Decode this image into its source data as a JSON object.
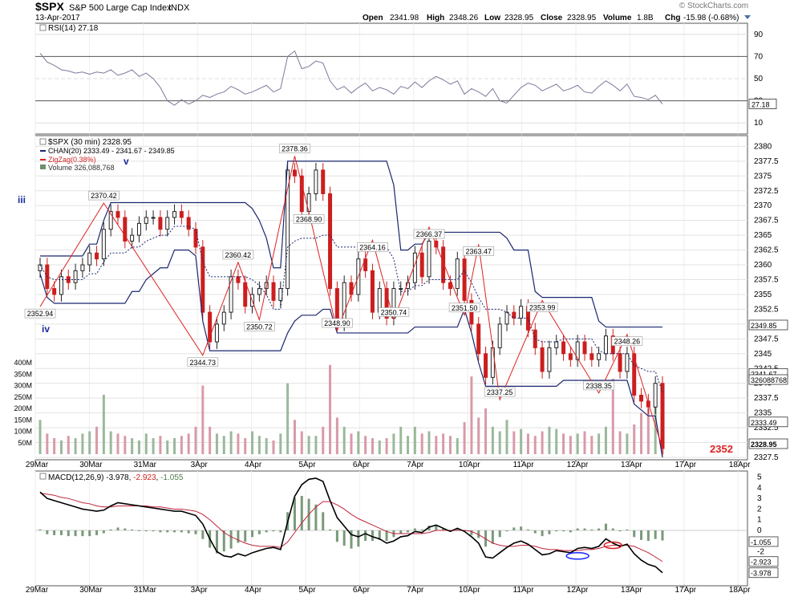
{
  "header": {
    "symbol": "$SPX",
    "name": "S&P 500 Large Cap Index",
    "exchange": "INDX",
    "date": "13-Apr-2017",
    "open_label": "Open",
    "open": "2341.98",
    "high_label": "High",
    "high": "2348.26",
    "low_label": "Low",
    "low": "2328.95",
    "close_label": "Close",
    "close": "2328.95",
    "volume_label": "Volume",
    "volume": "1.8B",
    "chg_label": "Chg",
    "chg": "-15.98 (-0.68%)",
    "copyright": "© StockCharts.com"
  },
  "rsi": {
    "label": "RSI(14) 27.18",
    "ticks": [
      90,
      70,
      50,
      30,
      10
    ],
    "last": "27.18",
    "values": [
      73,
      65,
      62,
      58,
      57,
      55,
      56,
      54,
      56,
      55,
      58,
      53,
      55,
      58,
      52,
      55,
      50,
      42,
      30,
      26,
      31,
      27,
      30,
      35,
      33,
      36,
      38,
      43,
      40,
      36,
      38,
      41,
      44,
      38,
      41,
      70,
      75,
      59,
      61,
      66,
      64,
      48,
      40,
      43,
      37,
      42,
      46,
      39,
      42,
      40,
      36,
      43,
      41,
      47,
      42,
      48,
      52,
      49,
      45,
      48,
      36,
      41,
      38,
      34,
      41,
      30,
      28,
      35,
      42,
      46,
      44,
      39,
      42,
      45,
      39,
      41,
      44,
      38,
      37,
      43,
      48,
      44,
      39,
      45,
      34,
      33,
      31,
      35,
      27
    ]
  },
  "price": {
    "legend_title": "$SPX (30 min) 2328.95",
    "legend_chan": "CHAN(20) 2333.49 - 2341.67 - 2349.85",
    "legend_zigzag": "ZigZag(0.38%)",
    "legend_volume": "Volume 326,088,768",
    "wave_labels": {
      "iii": "iii",
      "iv": "iv",
      "v": "v"
    },
    "target_label": "2352",
    "price_ticks": [
      2380,
      2377.5,
      2375,
      2372.5,
      2370,
      2367.5,
      2365,
      2362.5,
      2360,
      2357.5,
      2355,
      2352.5,
      2350,
      2347.5,
      2345,
      2342.5,
      2340,
      2337.5,
      2335,
      2332.5,
      2330,
      2327.5
    ],
    "volume_ticks": [
      "400M",
      "350M",
      "300M",
      "250M",
      "200M",
      "150M",
      "100M",
      "50M"
    ],
    "last_value_boxes": [
      "2349.85",
      "2341.67",
      "326088768",
      "2333.49",
      "2328.95"
    ]
  },
  "macd": {
    "label_prefix": "MACD(12,26,9)",
    "macd": "-3.978",
    "signal": "-2.923",
    "hist": "-1.055",
    "ticks": [
      5,
      4,
      3,
      2,
      1,
      0,
      -1,
      -2,
      -3,
      -4
    ]
  },
  "x_axis": {
    "labels": [
      "29Mar",
      "30Mar",
      "31Mar",
      "3Apr",
      "4Apr",
      "5Apr",
      "6Apr",
      "7Apr",
      "10Apr",
      "11Apr",
      "12Apr",
      "13Apr",
      "17Apr",
      "18Apr"
    ]
  },
  "colors": {
    "up": "#6e8f6e",
    "down": "#cc1e1e",
    "channel": "#1a2670",
    "zigzag": "#dd2222",
    "grid": "#bbbbbb"
  },
  "chart_data": {
    "type": "candlestick",
    "title": "$SPX S&P 500 Large Cap Index INDX",
    "interval": "30 min",
    "ylim": [
      2327.5,
      2381
    ],
    "zigzag_points": [
      {
        "label": "2352.94",
        "y": 2352.94
      },
      {
        "label": "2370.42",
        "y": 2370.42
      },
      {
        "label": "2344.73",
        "y": 2344.73
      },
      {
        "label": "2360.42",
        "y": 2360.42
      },
      {
        "label": "2350.72",
        "y": 2350.72
      },
      {
        "label": "2378.36",
        "y": 2378.36
      },
      {
        "label": "2368.90",
        "y": 2368.9
      },
      {
        "label": "2348.90",
        "y": 2348.9
      },
      {
        "label": "2364.16",
        "y": 2364.16
      },
      {
        "label": "2350.74",
        "y": 2350.74
      },
      {
        "label": "2366.37",
        "y": 2366.37
      },
      {
        "label": "2351.50",
        "y": 2351.5
      },
      {
        "label": "2363.47",
        "y": 2363.47
      },
      {
        "label": "2337.25",
        "y": 2337.25
      },
      {
        "label": "2353.99",
        "y": 2353.99
      },
      {
        "label": "2338.35",
        "y": 2338.35
      },
      {
        "label": "2348.26",
        "y": 2348.26
      }
    ],
    "closes": [
      2360,
      2356,
      2355,
      2358,
      2357,
      2359,
      2360,
      2362,
      2361,
      2366,
      2369,
      2368,
      2364,
      2365,
      2367,
      2368,
      2368,
      2366,
      2368,
      2369,
      2368,
      2366,
      2363,
      2352,
      2347,
      2350,
      2352,
      2358,
      2357,
      2353,
      2355,
      2356,
      2357,
      2354,
      2356,
      2376,
      2375,
      2369,
      2372,
      2376,
      2372,
      2356,
      2350,
      2357,
      2355,
      2361,
      2359,
      2352,
      2356,
      2351,
      2356,
      2356,
      2357,
      2362,
      2358,
      2364,
      2363,
      2357,
      2356,
      2361,
      2354,
      2350,
      2345,
      2341,
      2346,
      2350,
      2352,
      2351,
      2353,
      2349,
      2346,
      2342,
      2346,
      2347,
      2345,
      2344,
      2347,
      2345,
      2344,
      2345,
      2348,
      2345,
      2342,
      2345,
      2338,
      2337,
      2336,
      2340,
      2329
    ],
    "volumes_M": [
      150,
      90,
      70,
      60,
      80,
      70,
      90,
      100,
      120,
      260,
      100,
      90,
      80,
      70,
      60,
      90,
      70,
      80,
      60,
      70,
      80,
      90,
      120,
      300,
      120,
      90,
      80,
      100,
      90,
      70,
      100,
      80,
      70,
      60,
      90,
      310,
      150,
      100,
      80,
      80,
      120,
      390,
      160,
      120,
      90,
      100,
      80,
      70,
      60,
      70,
      90,
      120,
      80,
      120,
      90,
      100,
      80,
      90,
      80,
      70,
      140,
      340,
      160,
      200,
      120,
      100,
      150,
      100,
      110,
      90,
      80,
      100,
      120,
      110,
      90,
      80,
      90,
      100,
      80,
      90,
      120,
      330,
      100,
      90,
      130,
      180,
      200,
      250,
      310
    ],
    "macd": [
      3.6,
      3.0,
      2.8,
      2.6,
      2.4,
      2.2,
      2.0,
      1.9,
      1.8,
      1.9,
      2.3,
      2.6,
      2.5,
      2.4,
      2.3,
      2.2,
      2.1,
      2.0,
      1.9,
      1.8,
      1.8,
      1.6,
      1.4,
      0.6,
      -0.8,
      -2.0,
      -2.4,
      -2.5,
      -2.2,
      -2.4,
      -2.1,
      -1.9,
      -1.7,
      -1.6,
      -1.8,
      0.8,
      3.2,
      4.3,
      4.8,
      4.9,
      4.6,
      2.8,
      1.2,
      0.4,
      -0.4,
      -0.6,
      -0.3,
      -0.6,
      -0.8,
      -1.2,
      -1.0,
      -0.6,
      -0.5,
      -0.1,
      -0.2,
      0.3,
      0.5,
      0.2,
      -0.1,
      0.2,
      -0.1,
      -0.6,
      -1.2,
      -2.5,
      -2.6,
      -2.1,
      -1.6,
      -1.2,
      -1.0,
      -1.3,
      -1.8,
      -2.3,
      -2.2,
      -1.9,
      -2.0,
      -2.1,
      -1.7,
      -1.6,
      -1.7,
      -1.5,
      -0.8,
      -1.2,
      -1.5,
      -1.3,
      -2.2,
      -2.8,
      -3.2,
      -3.4,
      -3.98
    ],
    "macd_signal": [
      3.5,
      3.4,
      3.3,
      3.1,
      3.0,
      2.8,
      2.6,
      2.5,
      2.3,
      2.2,
      2.2,
      2.3,
      2.3,
      2.3,
      2.3,
      2.3,
      2.2,
      2.2,
      2.1,
      2.0,
      2.0,
      1.9,
      1.8,
      1.5,
      1.0,
      0.4,
      -0.2,
      -0.6,
      -0.9,
      -1.2,
      -1.4,
      -1.5,
      -1.5,
      -1.5,
      -1.6,
      -1.1,
      -0.2,
      0.7,
      1.5,
      2.2,
      2.7,
      2.7,
      2.4,
      2.0,
      1.5,
      1.1,
      0.8,
      0.5,
      0.2,
      -0.1,
      -0.3,
      -0.3,
      -0.3,
      -0.3,
      -0.3,
      -0.2,
      0.0,
      0.0,
      0.0,
      0.0,
      0.0,
      -0.1,
      -0.4,
      -0.8,
      -1.2,
      -1.4,
      -1.5,
      -1.5,
      -1.4,
      -1.4,
      -1.5,
      -1.7,
      -1.8,
      -1.8,
      -1.9,
      -1.9,
      -1.9,
      -1.8,
      -1.8,
      -1.7,
      -1.5,
      -1.4,
      -1.4,
      -1.4,
      -1.5,
      -1.8,
      -2.1,
      -2.5,
      -2.923
    ]
  }
}
